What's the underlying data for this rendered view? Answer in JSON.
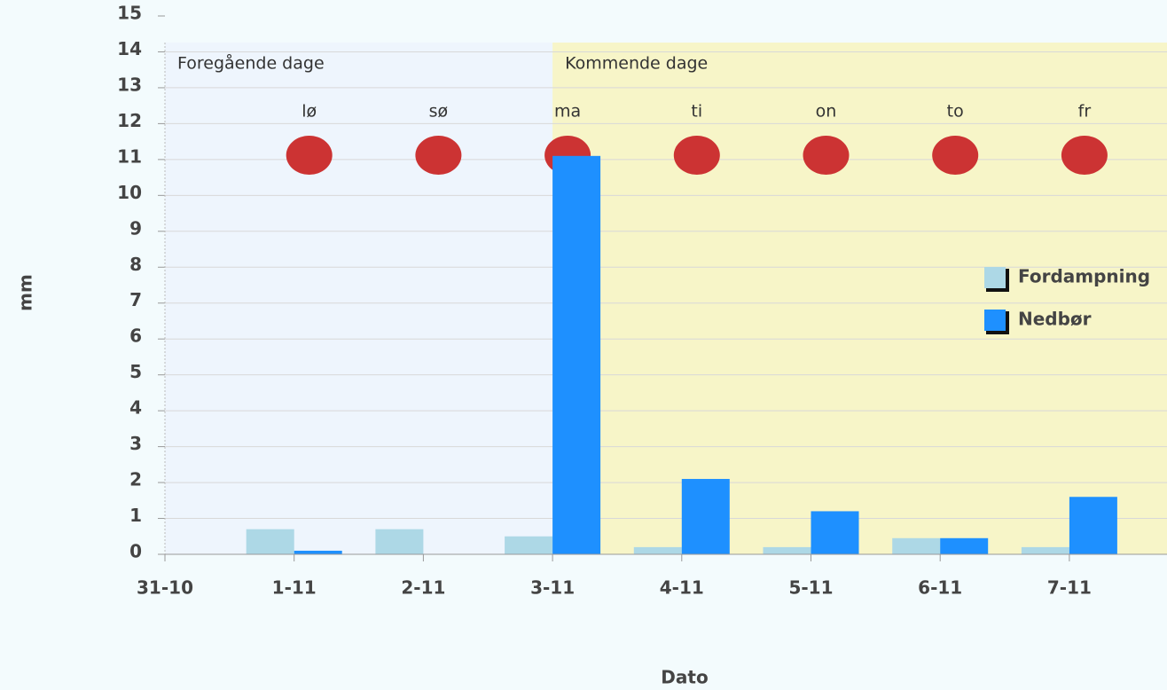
{
  "chart_data": {
    "type": "bar",
    "y_label": "mm",
    "x_label": "Dato",
    "categories": [
      "31-10",
      "1-11",
      "2-11",
      "3-11",
      "4-11",
      "5-11",
      "6-11",
      "7-11"
    ],
    "day_labels": [
      "lø",
      "sø",
      "ma",
      "ti",
      "on",
      "to",
      "fr"
    ],
    "annotations": [
      {
        "text": "Foregående dage",
        "color": "#eef5fd"
      },
      {
        "text": "Kommende dage",
        "color": "#f7f5c8"
      }
    ],
    "series": [
      {
        "name": "Fordampning",
        "color": "#add8e6",
        "values": [
          null,
          0.7,
          0.7,
          0.5,
          0.2,
          0.2,
          0.45,
          0.2
        ]
      },
      {
        "name": "Nedbør",
        "color": "#1e90ff",
        "values": [
          null,
          0.1,
          0,
          11.1,
          2.1,
          1.2,
          0.45,
          1.6
        ]
      }
    ],
    "ylim": [
      0,
      15
    ],
    "yticks": [
      0,
      1,
      2,
      3,
      4,
      5,
      6,
      7,
      8,
      9,
      10,
      11,
      12,
      13,
      14,
      15
    ],
    "grid": true,
    "legend": "right"
  }
}
